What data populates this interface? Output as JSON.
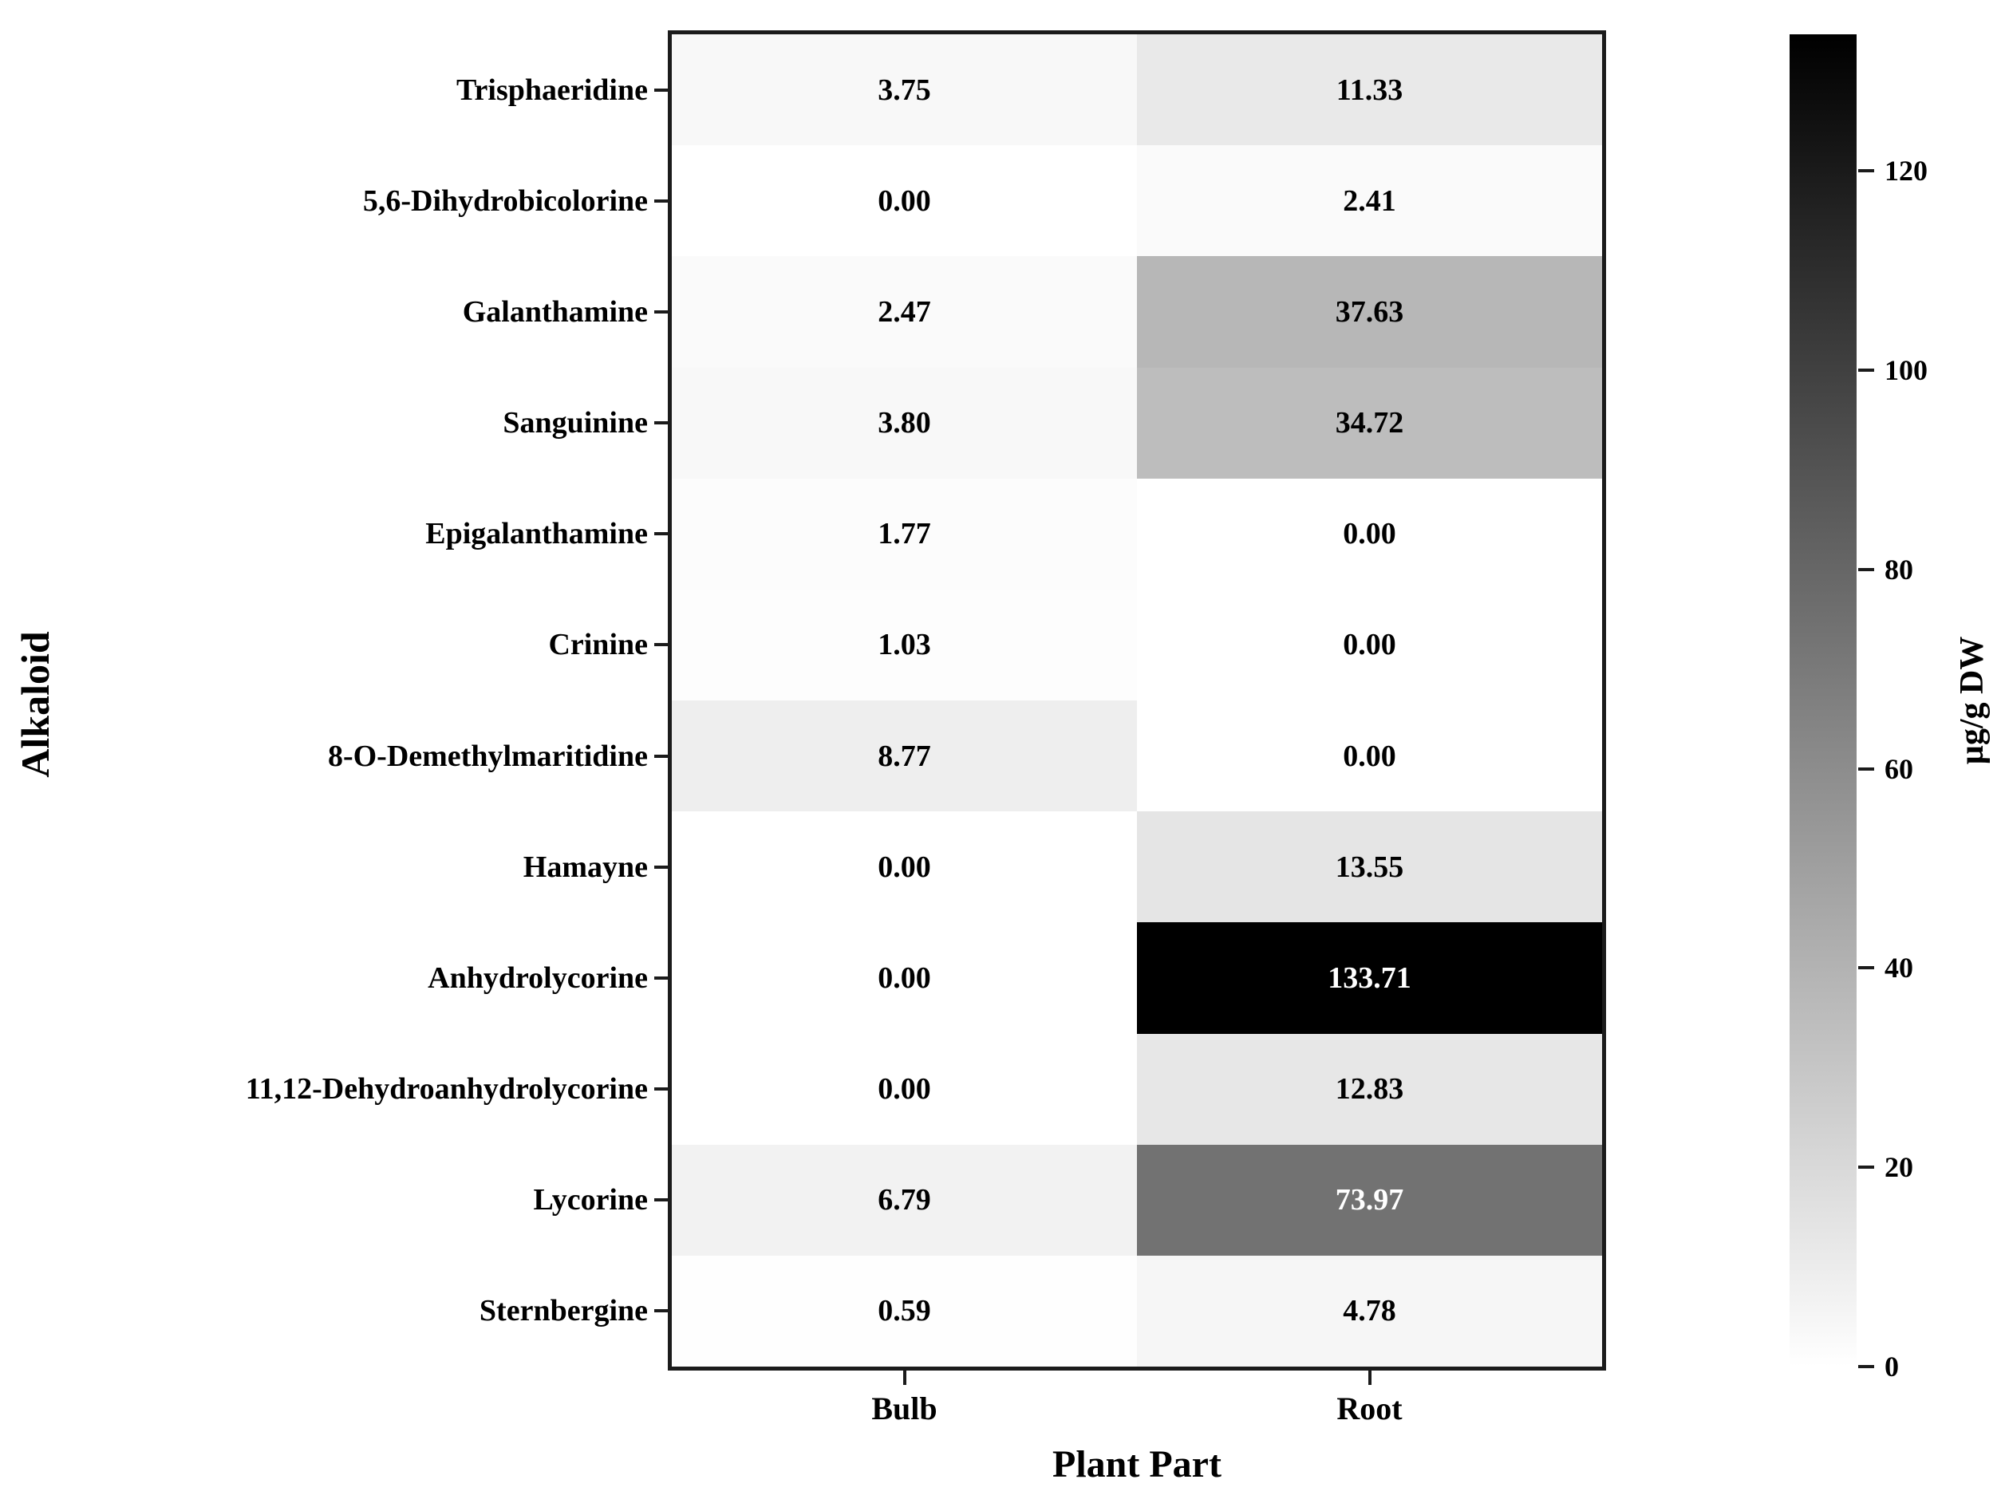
{
  "figure": {
    "background_color": "#ffffff",
    "border_color": "#1b1b1b",
    "annotation_dark_text": "#000000",
    "annotation_light_text": "#ffffff"
  },
  "chart_data": {
    "type": "heatmap",
    "xlabel": "Plant Part",
    "ylabel": "Alkaloid",
    "colorbar_label": "µg/g DW",
    "columns": [
      "Bulb",
      "Root"
    ],
    "rows": [
      "Trisphaeridine",
      "5,6-Dihydrobicolorine",
      "Galanthamine",
      "Sanguinine",
      "Epigalanthamine",
      "Crinine",
      "8-O-Demethylmaritidine",
      "Hamayne",
      "Anhydrolycorine",
      "11,12-Dehydroanhydrolycorine",
      "Lycorine",
      "Sternbergine"
    ],
    "values": [
      [
        3.75,
        11.33
      ],
      [
        0.0,
        2.41
      ],
      [
        2.47,
        37.63
      ],
      [
        3.8,
        34.72
      ],
      [
        1.77,
        0.0
      ],
      [
        1.03,
        0.0
      ],
      [
        8.77,
        0.0
      ],
      [
        0.0,
        13.55
      ],
      [
        0.0,
        133.71
      ],
      [
        0.0,
        12.83
      ],
      [
        6.79,
        73.97
      ],
      [
        0.59,
        4.78
      ]
    ],
    "value_format_decimals": 2,
    "vmin": 0,
    "vmax": 133.71,
    "colormap": "binary (0 = white, vmax = black)",
    "colorbar_ticks": [
      0,
      20,
      40,
      60,
      80,
      100,
      120
    ],
    "legend_position": "right-colorbar",
    "grid": false
  }
}
